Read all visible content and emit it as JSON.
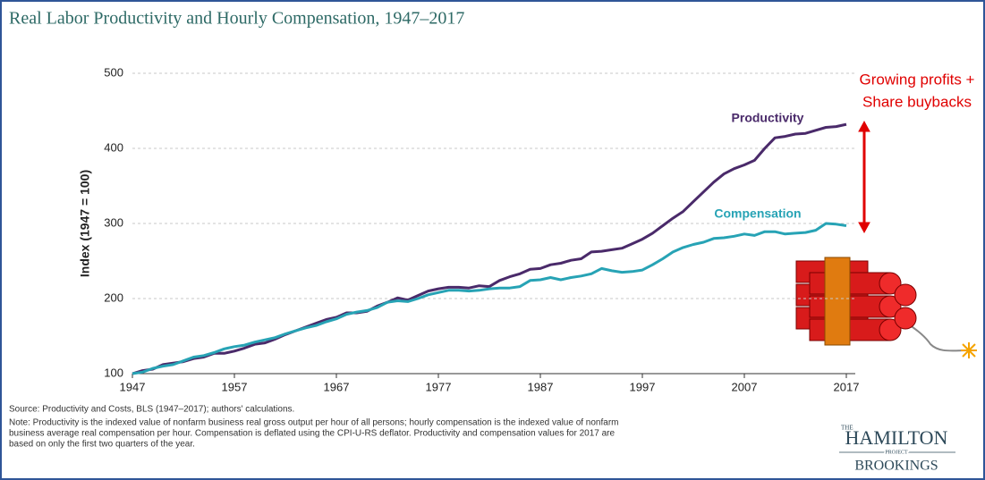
{
  "chart_data": {
    "type": "line",
    "title": "Real Labor Productivity and Hourly Compensation, 1947–2017",
    "y_label": "Index (1947 = 100)",
    "x": [
      1947,
      1948,
      1949,
      1950,
      1951,
      1952,
      1953,
      1954,
      1955,
      1956,
      1957,
      1958,
      1959,
      1960,
      1961,
      1962,
      1963,
      1964,
      1965,
      1966,
      1967,
      1968,
      1969,
      1970,
      1971,
      1972,
      1973,
      1974,
      1975,
      1976,
      1977,
      1978,
      1979,
      1980,
      1981,
      1982,
      1983,
      1984,
      1985,
      1986,
      1987,
      1988,
      1989,
      1990,
      1991,
      1992,
      1993,
      1994,
      1995,
      1996,
      1997,
      1998,
      1999,
      2000,
      2001,
      2002,
      2003,
      2004,
      2005,
      2006,
      2007,
      2008,
      2009,
      2010,
      2011,
      2012,
      2013,
      2014,
      2015,
      2016,
      2017
    ],
    "series": [
      {
        "name": "Productivity",
        "color": "#4a2a6a",
        "values": [
          100,
          104,
          106,
          112,
          114,
          116,
          120,
          122,
          127,
          127,
          130,
          134,
          139,
          141,
          146,
          152,
          157,
          162,
          167,
          172,
          175,
          181,
          181,
          183,
          190,
          195,
          201,
          198,
          204,
          210,
          213,
          215,
          215,
          214,
          217,
          216,
          224,
          229,
          233,
          239,
          240,
          245,
          247,
          251,
          253,
          262,
          263,
          265,
          267,
          273,
          279,
          287,
          297,
          307,
          316,
          329,
          342,
          355,
          366,
          373,
          378,
          384,
          400,
          414,
          416,
          419,
          420,
          424,
          428,
          429,
          432
        ]
      },
      {
        "name": "Compensation",
        "color": "#27a3b5",
        "values": [
          100,
          102,
          107,
          110,
          112,
          117,
          122,
          124,
          128,
          133,
          136,
          138,
          142,
          145,
          148,
          153,
          157,
          161,
          164,
          169,
          173,
          179,
          182,
          184,
          188,
          195,
          197,
          196,
          200,
          205,
          208,
          211,
          211,
          210,
          211,
          213,
          214,
          214,
          216,
          224,
          225,
          228,
          225,
          228,
          230,
          233,
          240,
          237,
          235,
          236,
          238,
          245,
          253,
          262,
          268,
          272,
          275,
          280,
          281,
          283,
          286,
          284,
          289,
          289,
          286,
          287,
          288,
          291,
          300,
          299,
          297
        ]
      }
    ],
    "xlim": [
      1947,
      2017
    ],
    "xticks": [
      1947,
      1957,
      1967,
      1977,
      1987,
      1997,
      2007,
      2017
    ],
    "ylim": [
      100,
      500
    ],
    "yticks": [
      100,
      200,
      300,
      400,
      500
    ],
    "grid": true,
    "annotation": [
      "Growing profits +",
      "Share buybacks"
    ],
    "source": "Source: Productivity and Costs, BLS (1947–2017); authors' calculations.",
    "note": [
      "Note: Productivity is the indexed value of nonfarm business real gross output per hour of all persons; hourly compensation is the indexed value of nonfarm",
      "business average real compensation per hour. Compensation is deflated using the CPI-U-RS deflator. Productivity and compensation values for 2017 are",
      "based on only the first two quarters of the year."
    ],
    "logo": {
      "top": "THE",
      "main": "HAMILTON",
      "sub": "PROJECT",
      "org": "BROOKINGS"
    }
  }
}
